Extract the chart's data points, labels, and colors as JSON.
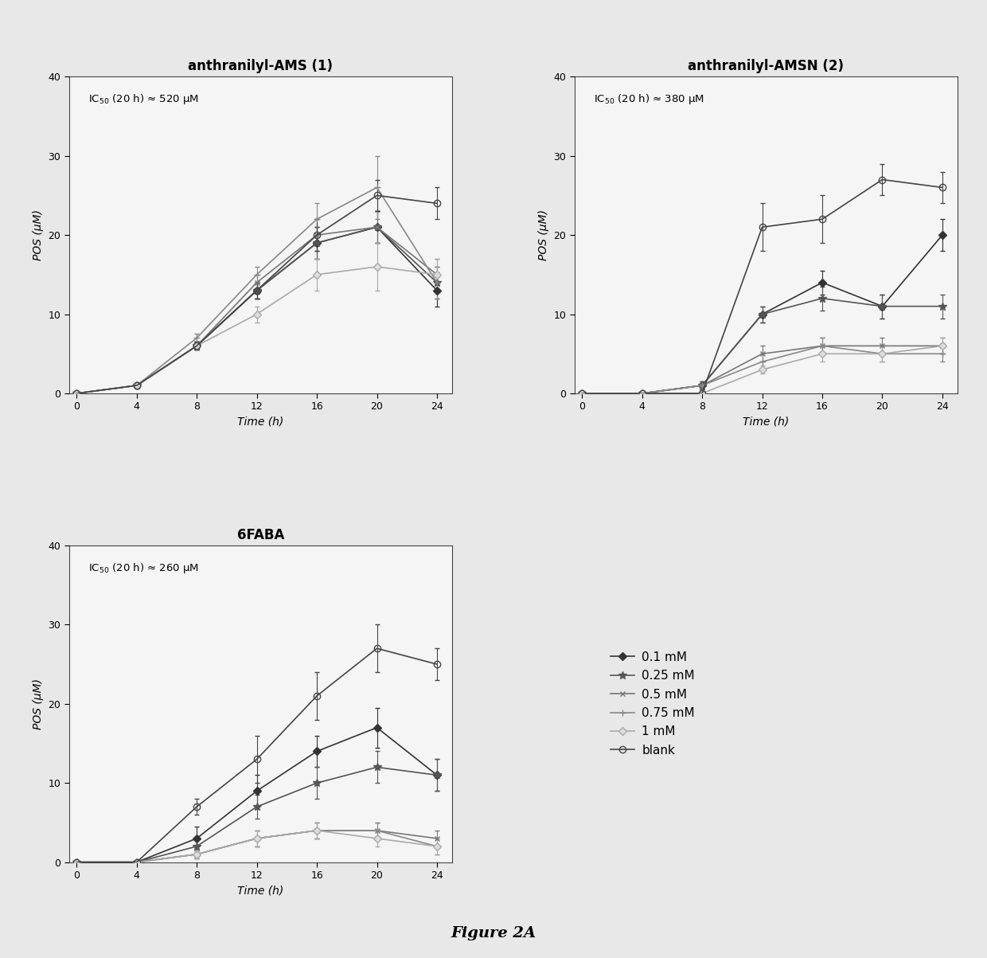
{
  "time": [
    0,
    4,
    8,
    12,
    16,
    20,
    24
  ],
  "ams_data": {
    "title": "anthranilyl-AMS (1)",
    "ic50_text": "IC$_{50}$ (20 h) ≈ 520 μM",
    "series": {
      "0.1mM": {
        "y": [
          0,
          1,
          6,
          13,
          19,
          21,
          13
        ],
        "yerr": [
          0,
          0.3,
          0.5,
          1,
          2,
          2,
          2
        ]
      },
      "0.25mM": {
        "y": [
          0,
          1,
          6,
          13,
          19,
          21,
          14
        ],
        "yerr": [
          0,
          0.3,
          0.5,
          1,
          2,
          2,
          2
        ]
      },
      "0.5mM": {
        "y": [
          0,
          1,
          6,
          14,
          20,
          21,
          15
        ],
        "yerr": [
          0,
          0.3,
          0.5,
          1,
          2,
          2,
          2
        ]
      },
      "0.75mM": {
        "y": [
          0,
          1,
          7,
          15,
          22,
          26,
          14
        ],
        "yerr": [
          0,
          0.3,
          0.5,
          1,
          2,
          4,
          2
        ]
      },
      "1mM": {
        "y": [
          0,
          1,
          6,
          10,
          15,
          16,
          15
        ],
        "yerr": [
          0,
          0.3,
          0.5,
          1,
          2,
          3,
          2
        ]
      },
      "blank": {
        "y": [
          0,
          1,
          6,
          13,
          20,
          25,
          24
        ],
        "yerr": [
          0,
          0.3,
          0.5,
          1,
          2,
          2,
          2
        ]
      }
    }
  },
  "amsn_data": {
    "title": "anthranilyl-AMSN (2)",
    "ic50_text": "IC$_{50}$ (20 h) ≈ 380 μM",
    "series": {
      "0.1mM": {
        "y": [
          0,
          0,
          1,
          10,
          14,
          11,
          20
        ],
        "yerr": [
          0,
          0,
          0.5,
          1,
          1.5,
          1.5,
          2
        ]
      },
      "0.25mM": {
        "y": [
          0,
          0,
          1,
          10,
          12,
          11,
          11
        ],
        "yerr": [
          0,
          0,
          0.5,
          1,
          1.5,
          1.5,
          1.5
        ]
      },
      "0.5mM": {
        "y": [
          0,
          0,
          1,
          5,
          6,
          6,
          6
        ],
        "yerr": [
          0,
          0,
          0.5,
          1,
          1,
          1,
          1
        ]
      },
      "0.75mM": {
        "y": [
          0,
          0,
          1,
          4,
          6,
          5,
          5
        ],
        "yerr": [
          0,
          0,
          0.5,
          1,
          1,
          1,
          1
        ]
      },
      "1mM": {
        "y": [
          0,
          0,
          0,
          3,
          5,
          5,
          6
        ],
        "yerr": [
          0,
          0,
          0.3,
          0.5,
          1,
          1,
          1
        ]
      },
      "blank": {
        "y": [
          0,
          0,
          0,
          21,
          22,
          27,
          26
        ],
        "yerr": [
          0,
          0,
          0,
          3,
          3,
          2,
          2
        ]
      }
    }
  },
  "faba_data": {
    "title": "6FABA",
    "ic50_text": "IC$_{50}$ (20 h) ≈ 260 μM",
    "series": {
      "0.1mM": {
        "y": [
          0,
          0,
          3,
          9,
          14,
          17,
          11
        ],
        "yerr": [
          0,
          0,
          1.5,
          2,
          2,
          2.5,
          2
        ]
      },
      "0.25mM": {
        "y": [
          0,
          0,
          2,
          7,
          10,
          12,
          11
        ],
        "yerr": [
          0,
          0,
          1,
          1.5,
          2,
          2,
          2
        ]
      },
      "0.5mM": {
        "y": [
          0,
          0,
          1,
          3,
          4,
          4,
          3
        ],
        "yerr": [
          0,
          0,
          0.5,
          1,
          1,
          1,
          1
        ]
      },
      "0.75mM": {
        "y": [
          0,
          0,
          1,
          3,
          4,
          4,
          2
        ],
        "yerr": [
          0,
          0,
          0.5,
          1,
          1,
          1,
          1
        ]
      },
      "1mM": {
        "y": [
          0,
          0,
          1,
          3,
          4,
          3,
          2
        ],
        "yerr": [
          0,
          0,
          0.5,
          1,
          1,
          1,
          1
        ]
      },
      "blank": {
        "y": [
          0,
          0,
          7,
          13,
          21,
          27,
          25
        ],
        "yerr": [
          0,
          0,
          1,
          3,
          3,
          3,
          2
        ]
      }
    }
  },
  "series_styles": {
    "0.1mM": {
      "color": "#333333",
      "marker": "D",
      "linestyle": "-",
      "lw": 1.2,
      "ms": 5,
      "mfc": "#333333",
      "label": "0.1 mM"
    },
    "0.25mM": {
      "color": "#555555",
      "marker": "*",
      "linestyle": "-",
      "lw": 1.2,
      "ms": 7,
      "mfc": "#555555",
      "label": "0.25 mM"
    },
    "0.5mM": {
      "color": "#777777",
      "marker": "x",
      "linestyle": "-",
      "lw": 1.2,
      "ms": 5,
      "mfc": "#777777",
      "label": "0.5 mM"
    },
    "0.75mM": {
      "color": "#888888",
      "marker": "+",
      "linestyle": "-",
      "lw": 1.2,
      "ms": 6,
      "mfc": "#888888",
      "label": "0.75 mM"
    },
    "1mM": {
      "color": "#aaaaaa",
      "marker": "D",
      "linestyle": "-",
      "lw": 1.2,
      "ms": 5,
      "mfc": "#dddddd",
      "label": "1 mM"
    },
    "blank": {
      "color": "#444444",
      "marker": "o",
      "linestyle": "-",
      "lw": 1.2,
      "ms": 6,
      "mfc": "none",
      "label": "blank"
    }
  },
  "ylabel": "POS (μM)",
  "xlabel": "Time (h)",
  "ylim": [
    0,
    40
  ],
  "yticks": [
    0,
    10,
    20,
    30,
    40
  ],
  "xticks": [
    0,
    4,
    8,
    12,
    16,
    20,
    24
  ],
  "figure_label": "Figure 2A",
  "bg_color": "#e8e8e8",
  "plot_bg": "#f5f5f5"
}
